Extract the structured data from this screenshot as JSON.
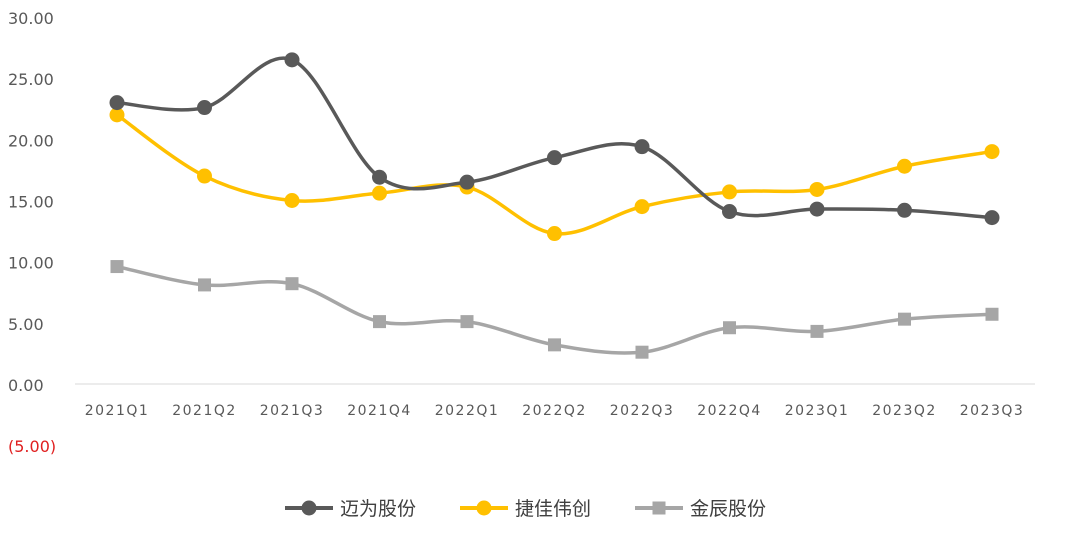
{
  "chart_data": {
    "type": "line",
    "categories": [
      "2021Q1",
      "2021Q2",
      "2021Q3",
      "2021Q4",
      "2022Q1",
      "2022Q2",
      "2022Q3",
      "2022Q4",
      "2023Q1",
      "2023Q2",
      "2023Q3"
    ],
    "y_ticks": [
      {
        "value": 30,
        "label": "30.00"
      },
      {
        "value": 25,
        "label": "25.00"
      },
      {
        "value": 20,
        "label": "20.00"
      },
      {
        "value": 15,
        "label": "15.00"
      },
      {
        "value": 10,
        "label": "10.00"
      },
      {
        "value": 5,
        "label": "5.00"
      },
      {
        "value": 0,
        "label": "0.00"
      },
      {
        "value": -5,
        "label": "(5.00)",
        "color": "#e02020"
      }
    ],
    "ylim": [
      -5,
      30
    ],
    "grid": false,
    "legend_position": "bottom",
    "series": [
      {
        "name": "迈为股份",
        "color": "#595959",
        "marker": "circle",
        "values": [
          23.0,
          22.6,
          26.5,
          16.9,
          16.5,
          18.5,
          19.4,
          14.1,
          14.3,
          14.2,
          13.6
        ]
      },
      {
        "name": "捷佳伟创",
        "color": "#ffc000",
        "marker": "circle",
        "values": [
          22.0,
          17.0,
          15.0,
          15.6,
          16.1,
          12.3,
          14.5,
          15.7,
          15.9,
          17.8,
          19.0
        ]
      },
      {
        "name": "金辰股份",
        "color": "#a6a6a6",
        "marker": "square",
        "values": [
          9.6,
          8.1,
          8.2,
          5.1,
          5.1,
          3.2,
          2.6,
          4.6,
          4.3,
          5.3,
          5.7
        ]
      }
    ]
  }
}
